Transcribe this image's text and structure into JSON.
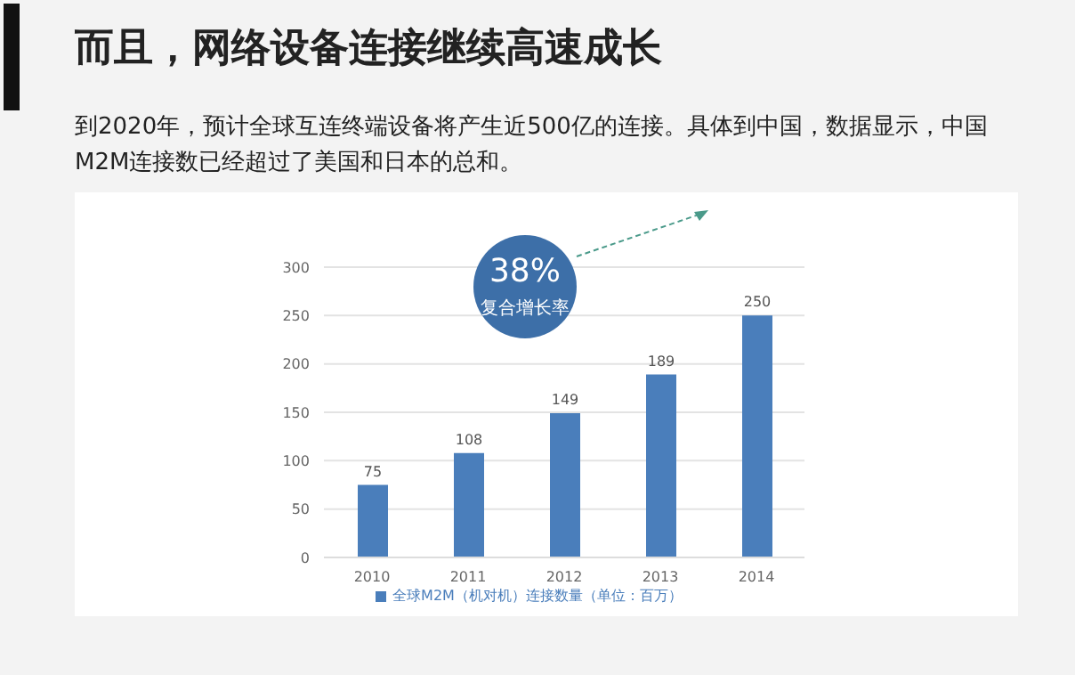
{
  "chart_data": {
    "type": "bar",
    "title": "而且，网络设备连接继续高速成长",
    "subtitle": "到2020年，预计全球互连终端设备将产生近500亿的连接。具体到中国，数据显示，中国M2M连接数已经超过了美国和日本的总和。",
    "categories": [
      "2010",
      "2011",
      "2012",
      "2013",
      "2014"
    ],
    "series": [
      {
        "name": "全球M2M（机对机）连接数量（单位：百万）",
        "color": "#4a7ebb",
        "values": [
          75,
          108,
          149,
          189,
          250
        ]
      }
    ],
    "ylim": [
      0,
      300
    ],
    "yticks": [
      0,
      50,
      100,
      150,
      200,
      250,
      300
    ],
    "grid": "y",
    "legend": "bottom",
    "data_labels": true,
    "annotations": [
      "38%",
      "复合增长率"
    ]
  }
}
